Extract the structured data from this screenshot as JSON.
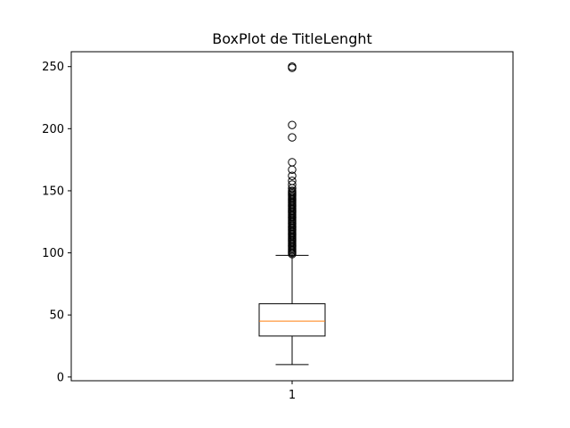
{
  "chart_data": {
    "type": "boxplot",
    "title": "BoxPlot de TitleLenght",
    "xlabel": "",
    "ylabel": "",
    "categories": [
      "1"
    ],
    "ylim": [
      -3,
      262
    ],
    "yticks": [
      0,
      50,
      100,
      150,
      200,
      250
    ],
    "ytick_labels": [
      "0",
      "50",
      "100",
      "150",
      "200",
      "250"
    ],
    "grid": false,
    "box": {
      "whisker_low": 10,
      "q1": 33,
      "median": 45,
      "q3": 59,
      "whisker_high": 98
    },
    "outliers": [
      99,
      100,
      101,
      102,
      103,
      104,
      105,
      106,
      107,
      108,
      109,
      110,
      111,
      112,
      113,
      114,
      115,
      116,
      117,
      118,
      119,
      120,
      121,
      122,
      123,
      124,
      125,
      126,
      127,
      128,
      129,
      130,
      131,
      132,
      133,
      134,
      135,
      136,
      137,
      138,
      139,
      140,
      141,
      142,
      143,
      144,
      145,
      146,
      147,
      148,
      149,
      150,
      152,
      155,
      158,
      162,
      167,
      173,
      193,
      203,
      249,
      250
    ],
    "colors": {
      "box": "#000000",
      "median": "#ff7f0e",
      "outlier": "#000000"
    }
  }
}
